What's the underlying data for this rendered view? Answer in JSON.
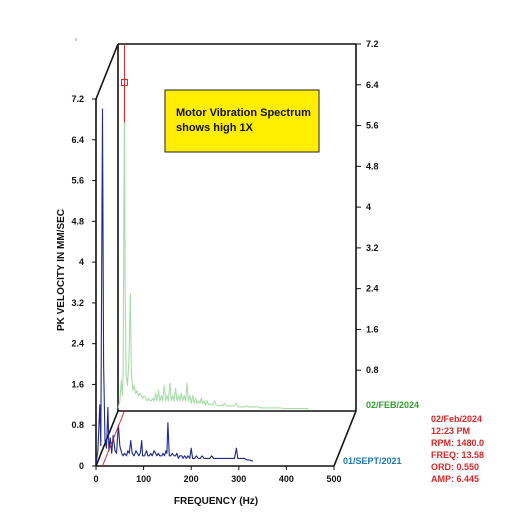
{
  "chart_data": {
    "type": "line",
    "title": "",
    "xlabel": "FREQUENCY (Hz)",
    "ylabel": "PK VELOCITY IN MM/SEC",
    "xlim": [
      0,
      500
    ],
    "ylim": [
      0,
      7.2
    ],
    "x_ticks": [
      "0",
      "100",
      "200",
      "300",
      "400",
      "500"
    ],
    "y_ticks_left": [
      "0",
      "0.8",
      "1.6",
      "2.4",
      "3.2",
      "4",
      "4.8",
      "5.6",
      "6.4",
      "7.2"
    ],
    "y_ticks_right": [
      "0.8",
      "1.6",
      "2.4",
      "3.2",
      "4",
      "4.8",
      "5.6",
      "6.4",
      "7.2"
    ],
    "annotation": {
      "line1": "Motor Vibration Spectrum",
      "line2": "shows high 1X",
      "background": "#ffee00"
    },
    "cursor_readout": {
      "date": "02/Feb/2024",
      "time": "12:23 PM",
      "rpm": "RPM: 1480.0",
      "freq": "FREQ: 13.58",
      "ord": "ORD: 0.550",
      "amp": "AMP: 6.445",
      "color": "#d62728"
    },
    "series": [
      {
        "name": "01/SEPT/2021",
        "color": "#1f2a8a",
        "label_color": "#1f77b4",
        "points": [
          [
            0,
            0.05
          ],
          [
            4,
            0.3
          ],
          [
            8,
            1.2
          ],
          [
            10,
            0.4
          ],
          [
            13.58,
            7.0
          ],
          [
            16,
            2.0
          ],
          [
            19,
            0.5
          ],
          [
            22,
            0.35
          ],
          [
            25,
            1.15
          ],
          [
            27,
            0.3
          ],
          [
            30,
            0.55
          ],
          [
            33,
            0.25
          ],
          [
            36,
            0.6
          ],
          [
            40,
            0.3
          ],
          [
            43,
            0.25
          ],
          [
            47,
            0.8
          ],
          [
            50,
            0.4
          ],
          [
            54,
            0.25
          ],
          [
            57,
            0.2
          ],
          [
            60,
            0.25
          ],
          [
            64,
            0.2
          ],
          [
            67,
            0.3
          ],
          [
            70,
            0.25
          ],
          [
            73,
            0.5
          ],
          [
            76,
            0.25
          ],
          [
            80,
            0.2
          ],
          [
            84,
            0.3
          ],
          [
            87,
            0.25
          ],
          [
            90,
            0.2
          ],
          [
            93,
            0.25
          ],
          [
            96,
            0.5
          ],
          [
            98,
            0.2
          ],
          [
            102,
            0.2
          ],
          [
            106,
            0.3
          ],
          [
            109,
            0.2
          ],
          [
            112,
            0.2
          ],
          [
            115,
            0.25
          ],
          [
            118,
            0.2
          ],
          [
            122,
            0.3
          ],
          [
            125,
            0.25
          ],
          [
            128,
            0.2
          ],
          [
            131,
            0.25
          ],
          [
            134,
            0.2
          ],
          [
            138,
            0.2
          ],
          [
            141,
            0.25
          ],
          [
            144,
            0.2
          ],
          [
            147,
            0.3
          ],
          [
            149,
            0.25
          ],
          [
            151,
            0.85
          ],
          [
            154,
            0.2
          ],
          [
            157,
            0.2
          ],
          [
            160,
            0.25
          ],
          [
            164,
            0.2
          ],
          [
            167,
            0.2
          ],
          [
            170,
            0.25
          ],
          [
            173,
            0.15
          ],
          [
            176,
            0.2
          ],
          [
            180,
            0.2
          ],
          [
            183,
            0.15
          ],
          [
            186,
            0.2
          ],
          [
            190,
            0.15
          ],
          [
            193,
            0.2
          ],
          [
            197,
            0.15
          ],
          [
            200,
            0.35
          ],
          [
            203,
            0.15
          ],
          [
            207,
            0.15
          ],
          [
            211,
            0.2
          ],
          [
            215,
            0.15
          ],
          [
            219,
            0.15
          ],
          [
            223,
            0.2
          ],
          [
            227,
            0.15
          ],
          [
            231,
            0.15
          ],
          [
            235,
            0.15
          ],
          [
            239,
            0.15
          ],
          [
            243,
            0.2
          ],
          [
            247,
            0.15
          ],
          [
            251,
            0.15
          ],
          [
            255,
            0.15
          ],
          [
            259,
            0.15
          ],
          [
            263,
            0.15
          ],
          [
            267,
            0.15
          ],
          [
            271,
            0.15
          ],
          [
            275,
            0.15
          ],
          [
            279,
            0.15
          ],
          [
            283,
            0.15
          ],
          [
            287,
            0.15
          ],
          [
            291,
            0.15
          ],
          [
            295,
            0.35
          ],
          [
            298,
            0.15
          ],
          [
            302,
            0.15
          ],
          [
            307,
            0.15
          ],
          [
            312,
            0.15
          ],
          [
            317,
            0.12
          ],
          [
            322,
            0.12
          ],
          [
            327,
            0.1
          ],
          [
            330,
            0.1
          ]
        ]
      },
      {
        "name": "02/FEB/2024",
        "color": "#a8dca8",
        "label_color": "#2ca02c",
        "points": [
          [
            0,
            0.05
          ],
          [
            4,
            0.2
          ],
          [
            7,
            0.6
          ],
          [
            9,
            0.3
          ],
          [
            11,
            0.8
          ],
          [
            13.58,
            6.445
          ],
          [
            15,
            2.5
          ],
          [
            17,
            0.7
          ],
          [
            20,
            0.5
          ],
          [
            23,
            1.0
          ],
          [
            26,
            2.3
          ],
          [
            28,
            0.8
          ],
          [
            31,
            0.4
          ],
          [
            34,
            0.5
          ],
          [
            37,
            0.35
          ],
          [
            40,
            0.4
          ],
          [
            43,
            0.3
          ],
          [
            46,
            0.35
          ],
          [
            49,
            0.3
          ],
          [
            52,
            0.25
          ],
          [
            55,
            0.3
          ],
          [
            58,
            0.25
          ],
          [
            61,
            0.2
          ],
          [
            64,
            0.25
          ],
          [
            67,
            0.2
          ],
          [
            70,
            0.2
          ],
          [
            73,
            0.25
          ],
          [
            76,
            0.2
          ],
          [
            79,
            0.35
          ],
          [
            82,
            0.2
          ],
          [
            85,
            0.4
          ],
          [
            88,
            0.2
          ],
          [
            91,
            0.3
          ],
          [
            94,
            0.2
          ],
          [
            97,
            0.5
          ],
          [
            100,
            0.2
          ],
          [
            103,
            0.3
          ],
          [
            106,
            0.2
          ],
          [
            109,
            0.55
          ],
          [
            112,
            0.2
          ],
          [
            115,
            0.3
          ],
          [
            118,
            0.2
          ],
          [
            121,
            0.45
          ],
          [
            124,
            0.2
          ],
          [
            127,
            0.3
          ],
          [
            130,
            0.2
          ],
          [
            133,
            0.35
          ],
          [
            136,
            0.2
          ],
          [
            139,
            0.3
          ],
          [
            142,
            0.2
          ],
          [
            145,
            0.55
          ],
          [
            148,
            0.2
          ],
          [
            151,
            0.3
          ],
          [
            154,
            0.15
          ],
          [
            157,
            0.3
          ],
          [
            160,
            0.15
          ],
          [
            163,
            0.25
          ],
          [
            166,
            0.15
          ],
          [
            169,
            0.2
          ],
          [
            172,
            0.15
          ],
          [
            175,
            0.25
          ],
          [
            178,
            0.15
          ],
          [
            181,
            0.2
          ],
          [
            184,
            0.12
          ],
          [
            187,
            0.2
          ],
          [
            190,
            0.12
          ],
          [
            193,
            0.15
          ],
          [
            196,
            0.12
          ],
          [
            199,
            0.12
          ],
          [
            203,
            0.2
          ],
          [
            206,
            0.12
          ],
          [
            210,
            0.1
          ],
          [
            213,
            0.1
          ],
          [
            217,
            0.12
          ],
          [
            220,
            0.1
          ],
          [
            224,
            0.15
          ],
          [
            228,
            0.1
          ],
          [
            232,
            0.1
          ],
          [
            236,
            0.1
          ],
          [
            240,
            0.1
          ],
          [
            244,
            0.1
          ],
          [
            248,
            0.15
          ],
          [
            252,
            0.08
          ],
          [
            256,
            0.08
          ],
          [
            260,
            0.08
          ],
          [
            265,
            0.08
          ],
          [
            270,
            0.1
          ],
          [
            275,
            0.08
          ],
          [
            280,
            0.08
          ],
          [
            285,
            0.08
          ],
          [
            290,
            0.08
          ],
          [
            295,
            0.08
          ],
          [
            300,
            0.06
          ],
          [
            310,
            0.06
          ],
          [
            320,
            0.06
          ],
          [
            330,
            0.06
          ],
          [
            340,
            0.06
          ],
          [
            350,
            0.05
          ],
          [
            360,
            0.05
          ],
          [
            370,
            0.05
          ],
          [
            380,
            0.05
          ],
          [
            390,
            0.05
          ],
          [
            400,
            0.05
          ]
        ]
      }
    ]
  }
}
